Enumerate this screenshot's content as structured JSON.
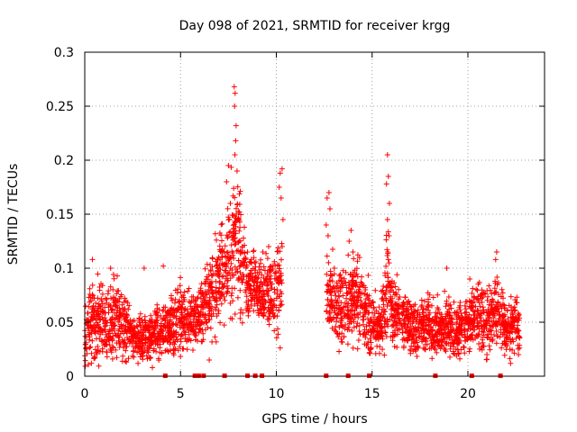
{
  "chart_data": {
    "type": "scatter",
    "title": "Day 098 of 2021, SRMTID for receiver krgg",
    "xlabel": "GPS time / hours",
    "ylabel": "SRMTID / TECUs",
    "xlim": [
      0,
      24
    ],
    "ylim": [
      0,
      0.3
    ],
    "xticks": [
      0,
      5,
      10,
      15,
      20
    ],
    "xtick_labels": [
      "0",
      "5",
      "10",
      "15",
      "20"
    ],
    "yticks": [
      0,
      0.05,
      0.1,
      0.15,
      0.2,
      0.25,
      0.3
    ],
    "ytick_labels": [
      "0",
      "0.05",
      "0.1",
      "0.15",
      "0.2",
      "0.25",
      "0.3"
    ],
    "grid": true,
    "marker": "+",
    "color": "#ff0000",
    "envelope": [
      [
        0.0,
        0.035,
        0.022
      ],
      [
        0.5,
        0.055,
        0.03
      ],
      [
        1.0,
        0.05,
        0.028
      ],
      [
        1.5,
        0.052,
        0.03
      ],
      [
        2.0,
        0.048,
        0.025
      ],
      [
        2.5,
        0.036,
        0.015
      ],
      [
        3.0,
        0.038,
        0.018
      ],
      [
        3.5,
        0.036,
        0.018
      ],
      [
        4.0,
        0.042,
        0.02
      ],
      [
        4.5,
        0.048,
        0.022
      ],
      [
        5.0,
        0.055,
        0.025
      ],
      [
        5.5,
        0.05,
        0.02
      ],
      [
        6.0,
        0.055,
        0.025
      ],
      [
        6.5,
        0.075,
        0.03
      ],
      [
        7.0,
        0.09,
        0.035
      ],
      [
        7.5,
        0.115,
        0.045
      ],
      [
        8.0,
        0.12,
        0.05
      ],
      [
        8.5,
        0.085,
        0.025
      ],
      [
        9.0,
        0.085,
        0.022
      ],
      [
        9.5,
        0.075,
        0.025
      ],
      [
        10.0,
        0.08,
        0.03
      ],
      [
        10.3,
        0.09,
        0.04
      ],
      [
        12.6,
        0.075,
        0.03
      ],
      [
        13.0,
        0.065,
        0.03
      ],
      [
        13.5,
        0.06,
        0.03
      ],
      [
        14.0,
        0.075,
        0.03
      ],
      [
        14.5,
        0.065,
        0.03
      ],
      [
        15.0,
        0.045,
        0.025
      ],
      [
        15.5,
        0.05,
        0.02
      ],
      [
        15.8,
        0.09,
        0.045
      ],
      [
        16.0,
        0.06,
        0.025
      ],
      [
        16.5,
        0.055,
        0.025
      ],
      [
        17.0,
        0.048,
        0.022
      ],
      [
        17.5,
        0.045,
        0.02
      ],
      [
        18.0,
        0.048,
        0.022
      ],
      [
        18.5,
        0.042,
        0.02
      ],
      [
        19.0,
        0.045,
        0.022
      ],
      [
        19.5,
        0.042,
        0.022
      ],
      [
        20.0,
        0.048,
        0.022
      ],
      [
        20.5,
        0.055,
        0.025
      ],
      [
        21.0,
        0.05,
        0.022
      ],
      [
        21.5,
        0.062,
        0.028
      ],
      [
        22.0,
        0.045,
        0.02
      ],
      [
        22.7,
        0.045,
        0.018
      ]
    ],
    "points": [
      [
        7.8,
        0.268
      ],
      [
        7.85,
        0.262
      ],
      [
        7.82,
        0.25
      ],
      [
        7.9,
        0.232
      ],
      [
        7.88,
        0.218
      ],
      [
        7.84,
        0.205
      ],
      [
        7.5,
        0.195
      ],
      [
        7.4,
        0.18
      ],
      [
        7.95,
        0.19
      ],
      [
        7.6,
        0.16
      ],
      [
        10.3,
        0.192
      ],
      [
        10.2,
        0.188
      ],
      [
        10.15,
        0.175
      ],
      [
        10.25,
        0.165
      ],
      [
        10.35,
        0.145
      ],
      [
        10.3,
        0.12
      ],
      [
        12.75,
        0.17
      ],
      [
        12.65,
        0.165
      ],
      [
        12.8,
        0.155
      ],
      [
        12.6,
        0.14
      ],
      [
        12.7,
        0.13
      ],
      [
        13.9,
        0.135
      ],
      [
        13.8,
        0.125
      ],
      [
        14.0,
        0.115
      ],
      [
        15.8,
        0.205
      ],
      [
        15.85,
        0.185
      ],
      [
        15.75,
        0.178
      ],
      [
        15.9,
        0.16
      ],
      [
        15.8,
        0.145
      ],
      [
        15.88,
        0.13
      ],
      [
        15.82,
        0.115
      ],
      [
        8.5,
        0.115
      ],
      [
        9.3,
        0.115
      ],
      [
        9.6,
        0.12
      ],
      [
        21.5,
        0.115
      ],
      [
        21.45,
        0.108
      ],
      [
        0.4,
        0.108
      ],
      [
        4.1,
        0.102
      ],
      [
        3.1,
        0.1
      ],
      [
        1.35,
        0.1
      ],
      [
        18.9,
        0.1
      ],
      [
        20.1,
        0.09
      ],
      [
        6.5,
        0.015
      ],
      [
        2.9,
        0.018
      ],
      [
        0.35,
        0.012
      ]
    ],
    "missing_epochs_y": 0,
    "missing_epochs_x": [
      4.2,
      5.75,
      5.95,
      6.2,
      7.3,
      8.5,
      8.9,
      9.25,
      12.6,
      13.75,
      14.85,
      18.3,
      20.2,
      21.7
    ]
  }
}
